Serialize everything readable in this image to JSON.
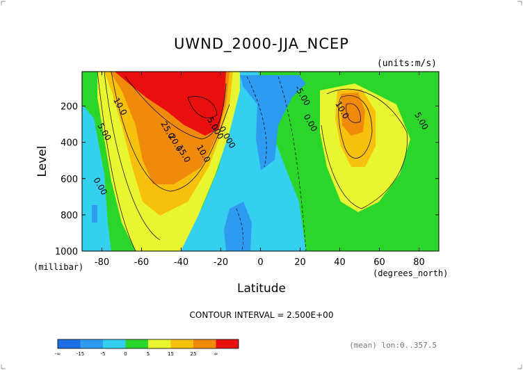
{
  "chart_data": {
    "type": "heatmap",
    "title": "UWND_2000-JJA_NCEP",
    "units_label": "(units:m/s)",
    "xlabel": "Latitude",
    "x_unit_label": "(degrees_north)",
    "ylabel": "Level",
    "y_unit_label": "(millibar)",
    "xlim": [
      -90,
      90
    ],
    "ylim": [
      1000,
      10
    ],
    "y_inverted": true,
    "x_ticks": [
      "-80",
      "-60",
      "-40",
      "-20",
      "0",
      "20",
      "40",
      "60",
      "80"
    ],
    "y_ticks": [
      "200",
      "400",
      "600",
      "800",
      "1000"
    ],
    "contour_interval_label": "CONTOUR INTERVAL = 2.500E+00",
    "contour_interval": 2.5,
    "contour_labels": [
      {
        "text": "10.0",
        "lat": -72,
        "level": 210
      },
      {
        "text": "5.00",
        "lat": -80,
        "level": 350
      },
      {
        "text": "25.0",
        "lat": -48,
        "level": 340
      },
      {
        "text": "20.0",
        "lat": -44,
        "level": 410
      },
      {
        "text": "15.0",
        "lat": -40,
        "level": 470
      },
      {
        "text": "10.0",
        "lat": -30,
        "level": 470
      },
      {
        "text": "5.000",
        "lat": -24,
        "level": 330
      },
      {
        "text": "0.000",
        "lat": -18,
        "level": 380
      },
      {
        "text": "-5.00",
        "lat": 20,
        "level": 150
      },
      {
        "text": "0.00",
        "lat": 24,
        "level": 300
      },
      {
        "text": "10.0",
        "lat": 40,
        "level": 230
      },
      {
        "text": "5.00",
        "lat": 80,
        "level": 290
      },
      {
        "text": "0.00",
        "lat": -82,
        "level": 650
      }
    ],
    "colorbar": {
      "levels": [
        "-∞",
        "-15",
        "-5",
        "0",
        "5",
        "15",
        "25",
        "∞"
      ],
      "colors": [
        "#1b6ee3",
        "#2f9bf0",
        "#35d0f0",
        "#2bd62b",
        "#e8f530",
        "#f7c00a",
        "#f08a0a",
        "#e80f0f"
      ]
    },
    "footnote": "(mean) lon:0..357.5"
  }
}
